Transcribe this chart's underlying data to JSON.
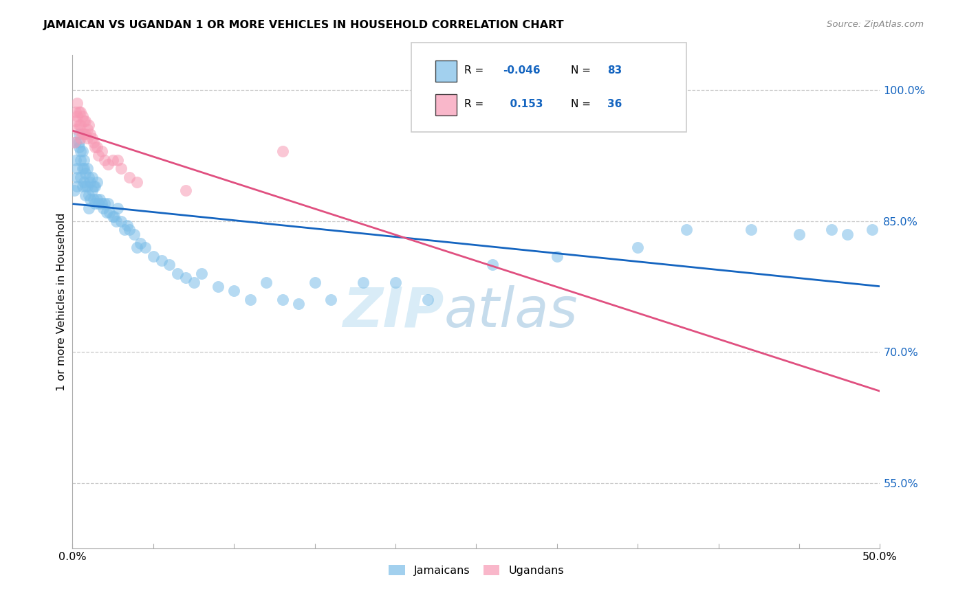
{
  "title": "JAMAICAN VS UGANDAN 1 OR MORE VEHICLES IN HOUSEHOLD CORRELATION CHART",
  "source": "Source: ZipAtlas.com",
  "ylabel": "1 or more Vehicles in Household",
  "ytick_labels": [
    "100.0%",
    "85.0%",
    "70.0%",
    "55.0%"
  ],
  "ytick_values": [
    1.0,
    0.85,
    0.7,
    0.55
  ],
  "xlim": [
    0.0,
    0.5
  ],
  "ylim": [
    0.475,
    1.04
  ],
  "legend_r_jamaicans": "-0.046",
  "legend_n_jamaicans": "83",
  "legend_r_ugandans": "0.153",
  "legend_n_ugandans": "36",
  "jamaican_color": "#7bbde8",
  "ugandan_color": "#f799b4",
  "trend_jamaican_color": "#1565c0",
  "trend_ugandan_color": "#e05080",
  "watermark_zip": "ZIP",
  "watermark_atlas": "atlas",
  "jamaicans_x": [
    0.001,
    0.002,
    0.002,
    0.003,
    0.003,
    0.003,
    0.004,
    0.004,
    0.004,
    0.005,
    0.005,
    0.005,
    0.006,
    0.006,
    0.006,
    0.007,
    0.007,
    0.007,
    0.008,
    0.008,
    0.008,
    0.009,
    0.009,
    0.01,
    0.01,
    0.01,
    0.011,
    0.011,
    0.012,
    0.012,
    0.013,
    0.013,
    0.014,
    0.014,
    0.015,
    0.015,
    0.016,
    0.017,
    0.018,
    0.019,
    0.02,
    0.021,
    0.022,
    0.023,
    0.025,
    0.026,
    0.027,
    0.028,
    0.03,
    0.032,
    0.034,
    0.035,
    0.038,
    0.04,
    0.042,
    0.045,
    0.05,
    0.055,
    0.06,
    0.065,
    0.07,
    0.075,
    0.08,
    0.09,
    0.1,
    0.11,
    0.12,
    0.13,
    0.14,
    0.15,
    0.16,
    0.18,
    0.2,
    0.22,
    0.26,
    0.3,
    0.35,
    0.38,
    0.42,
    0.45,
    0.47,
    0.48,
    0.495
  ],
  "jamaicans_y": [
    0.885,
    0.94,
    0.92,
    0.91,
    0.9,
    0.89,
    0.935,
    0.95,
    0.94,
    0.92,
    0.93,
    0.9,
    0.93,
    0.91,
    0.89,
    0.91,
    0.92,
    0.895,
    0.905,
    0.89,
    0.88,
    0.91,
    0.89,
    0.9,
    0.88,
    0.865,
    0.895,
    0.875,
    0.9,
    0.885,
    0.89,
    0.875,
    0.89,
    0.87,
    0.895,
    0.875,
    0.87,
    0.875,
    0.87,
    0.865,
    0.87,
    0.86,
    0.87,
    0.86,
    0.855,
    0.855,
    0.85,
    0.865,
    0.85,
    0.84,
    0.845,
    0.84,
    0.835,
    0.82,
    0.825,
    0.82,
    0.81,
    0.805,
    0.8,
    0.79,
    0.785,
    0.78,
    0.79,
    0.775,
    0.77,
    0.76,
    0.78,
    0.76,
    0.755,
    0.78,
    0.76,
    0.78,
    0.78,
    0.76,
    0.8,
    0.81,
    0.82,
    0.84,
    0.84,
    0.835,
    0.84,
    0.835,
    0.84
  ],
  "ugandans_x": [
    0.001,
    0.002,
    0.002,
    0.003,
    0.003,
    0.003,
    0.004,
    0.004,
    0.005,
    0.005,
    0.005,
    0.006,
    0.006,
    0.007,
    0.007,
    0.008,
    0.008,
    0.009,
    0.009,
    0.01,
    0.011,
    0.012,
    0.013,
    0.014,
    0.015,
    0.016,
    0.018,
    0.02,
    0.022,
    0.025,
    0.028,
    0.03,
    0.035,
    0.04,
    0.07,
    0.13
  ],
  "ugandans_y": [
    0.94,
    0.965,
    0.975,
    0.985,
    0.97,
    0.955,
    0.975,
    0.96,
    0.975,
    0.96,
    0.945,
    0.97,
    0.95,
    0.965,
    0.95,
    0.965,
    0.95,
    0.955,
    0.945,
    0.96,
    0.95,
    0.945,
    0.94,
    0.935,
    0.935,
    0.925,
    0.93,
    0.92,
    0.915,
    0.92,
    0.92,
    0.91,
    0.9,
    0.895,
    0.885,
    0.93
  ],
  "trend_jamaican_start_x": 0.0,
  "trend_jamaican_end_x": 0.5,
  "trend_ugandan_start_x": 0.0,
  "trend_ugandan_end_x": 0.5
}
